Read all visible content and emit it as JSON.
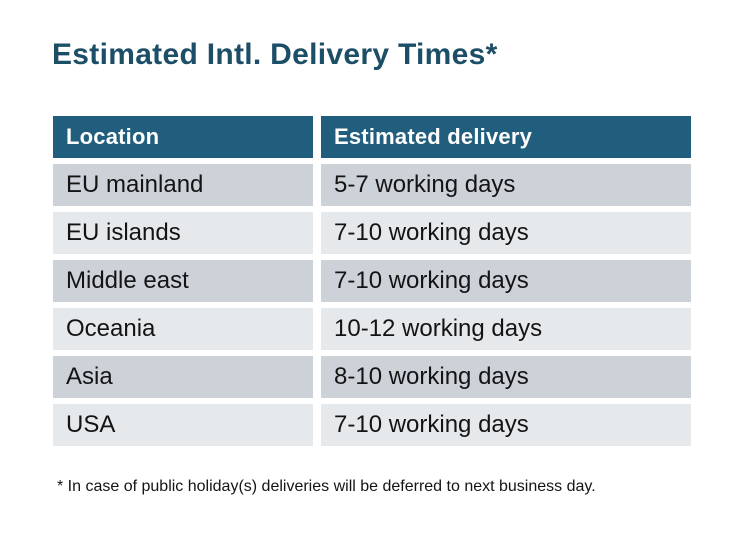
{
  "title": "Estimated Intl. Delivery Times*",
  "table": {
    "columns": [
      "Location",
      "Estimated delivery"
    ],
    "rows": [
      {
        "location": "EU mainland",
        "delivery": "5-7 working days"
      },
      {
        "location": "EU islands",
        "delivery": "7-10 working days"
      },
      {
        "location": "Middle east",
        "delivery": "7-10 working days"
      },
      {
        "location": "Oceania",
        "delivery": "10-12 working days"
      },
      {
        "location": "Asia",
        "delivery": "8-10 working days"
      },
      {
        "location": "USA",
        "delivery": "7-10 working days"
      }
    ]
  },
  "footnote": "* In case of public holiday(s) deliveries will be deferred to next business day.",
  "colors": {
    "title_text": "#1c4e67",
    "header_background": "#215e7e",
    "header_text": "#ffffff",
    "row_dark": "#cdd1d8",
    "row_light": "#e6e9ec",
    "body_text": "#141414",
    "page_background": "#ffffff"
  },
  "chart_data": {
    "type": "table",
    "title": "Estimated Intl. Delivery Times*",
    "columns": [
      "Location",
      "Estimated delivery"
    ],
    "rows": [
      [
        "EU mainland",
        "5-7 working days"
      ],
      [
        "EU islands",
        "7-10 working days"
      ],
      [
        "Middle east",
        "7-10 working days"
      ],
      [
        "Oceania",
        "10-12 working days"
      ],
      [
        "Asia",
        "8-10 working days"
      ],
      [
        "USA",
        "7-10 working days"
      ]
    ],
    "footnote": "* In case of public holiday(s) deliveries will be deferred to next business day.",
    "layout_hints": {
      "striped_rows": true,
      "header_style": "solid teal band, white bold text",
      "cell_gaps": "white gutters between all cells"
    }
  }
}
